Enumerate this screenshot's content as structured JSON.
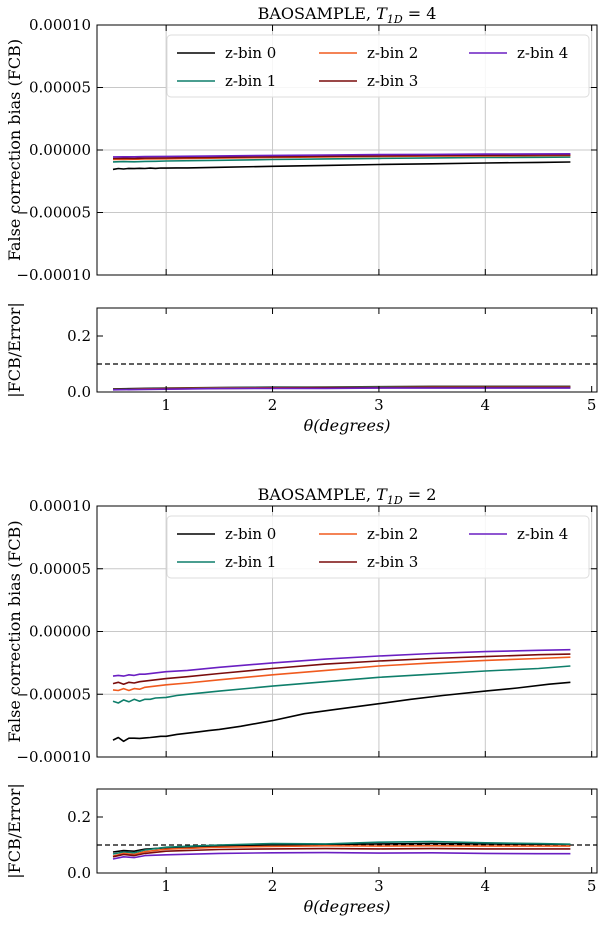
{
  "colors": {
    "z-bin 0": "#000000",
    "z-bin 1": "#0f7f6b",
    "z-bin 2": "#f05a1e",
    "z-bin 3": "#7a0c0c",
    "z-bin 4": "#6a1fc2"
  },
  "chart_data": [
    {
      "type": "line",
      "title": "BAOSAMPLE, T_1D = 4",
      "title_prefix": "BAOSAMPLE, ",
      "title_var": "T",
      "title_sub": "1D",
      "title_suffix": " = 4",
      "ylabel": "False correction bias (FCB)",
      "xlim": [
        0.35,
        5.05
      ],
      "ylim": [
        -0.0001,
        0.0001
      ],
      "yticks": [
        -0.0001,
        -5e-05,
        0.0,
        5e-05,
        0.0001
      ],
      "ytick_labels": [
        "−0.00010",
        "−0.00005",
        "0.00000",
        "0.00005",
        "0.00010"
      ],
      "xticks": [
        1,
        2,
        3,
        4,
        5
      ],
      "grid": true,
      "legend_placement": "top-right",
      "series": [
        {
          "name": "z-bin 0",
          "x": [
            0.5,
            0.55,
            0.6,
            0.65,
            0.7,
            0.75,
            0.8,
            0.85,
            0.9,
            0.95,
            1.0,
            1.1,
            1.2,
            1.5,
            2.0,
            2.5,
            3.0,
            3.5,
            4.0,
            4.5,
            4.8
          ],
          "y": [
            -1.55e-05,
            -1.48e-05,
            -1.52e-05,
            -1.47e-05,
            -1.49e-05,
            -1.46e-05,
            -1.48e-05,
            -1.45e-05,
            -1.47e-05,
            -1.44e-05,
            -1.45e-05,
            -1.43e-05,
            -1.43e-05,
            -1.38e-05,
            -1.3e-05,
            -1.23e-05,
            -1.16e-05,
            -1.1e-05,
            -1.04e-05,
            -9.9e-06,
            -9.6e-06
          ]
        },
        {
          "name": "z-bin 1",
          "x": [
            0.5,
            0.6,
            0.7,
            0.8,
            0.9,
            1.0,
            1.5,
            2.0,
            2.5,
            3.0,
            3.5,
            4.0,
            4.5,
            4.8
          ],
          "y": [
            -9.5e-06,
            -9.3e-06,
            -9.4e-06,
            -9.1e-06,
            -9e-06,
            -8.8e-06,
            -8.2e-06,
            -7.6e-06,
            -7.1e-06,
            -6.7e-06,
            -6.3e-06,
            -6e-06,
            -5.8e-06,
            -5.7e-06
          ]
        },
        {
          "name": "z-bin 2",
          "x": [
            0.5,
            0.6,
            0.7,
            0.8,
            1.0,
            1.5,
            2.0,
            2.5,
            3.0,
            3.5,
            4.0,
            4.5,
            4.8
          ],
          "y": [
            -7.5e-06,
            -7.4e-06,
            -7.4e-06,
            -7.2e-06,
            -7e-06,
            -6.5e-06,
            -6e-06,
            -5.6e-06,
            -5.2e-06,
            -4.9e-06,
            -4.7e-06,
            -4.5e-06,
            -4.4e-06
          ]
        },
        {
          "name": "z-bin 3",
          "x": [
            0.5,
            0.6,
            0.7,
            0.8,
            1.0,
            1.5,
            2.0,
            2.5,
            3.0,
            3.5,
            4.0,
            4.5,
            4.8
          ],
          "y": [
            -6.8e-06,
            -6.6e-06,
            -6.7e-06,
            -6.5e-06,
            -6.3e-06,
            -5.8e-06,
            -5.4e-06,
            -5e-06,
            -4.7e-06,
            -4.4e-06,
            -4.2e-06,
            -4e-06,
            -3.9e-06
          ]
        },
        {
          "name": "z-bin 4",
          "x": [
            0.5,
            0.6,
            0.7,
            0.8,
            1.0,
            1.5,
            2.0,
            2.5,
            3.0,
            3.5,
            4.0,
            4.5,
            4.8
          ],
          "y": [
            -5.5e-06,
            -5.4e-06,
            -5.4e-06,
            -5.3e-06,
            -5.1e-06,
            -4.7e-06,
            -4.3e-06,
            -4e-06,
            -3.7e-06,
            -3.5e-06,
            -3.3e-06,
            -3.1e-06,
            -3e-06
          ]
        }
      ]
    },
    {
      "type": "line",
      "ylabel": "|FCB/Error|",
      "xlabel": "θ(degrees)",
      "xlim": [
        0.35,
        5.05
      ],
      "ylim": [
        0.0,
        0.3
      ],
      "yticks": [
        0.0,
        0.2
      ],
      "ytick_labels": [
        "0.0",
        "0.2"
      ],
      "xticks": [
        1,
        2,
        3,
        4,
        5
      ],
      "xtick_labels": [
        "1",
        "2",
        "3",
        "4",
        "5"
      ],
      "reference_line": 0.1,
      "grid": false,
      "series": [
        {
          "name": "z-bin 0",
          "x": [
            0.5,
            1.0,
            1.5,
            2.0,
            2.5,
            3.0,
            3.5,
            4.0,
            4.5,
            4.8
          ],
          "y": [
            0.011,
            0.014,
            0.016,
            0.017,
            0.018,
            0.019,
            0.02,
            0.02,
            0.02,
            0.02
          ]
        },
        {
          "name": "z-bin 1",
          "x": [
            0.5,
            1.0,
            1.5,
            2.0,
            2.5,
            3.0,
            3.5,
            4.0,
            4.5,
            4.8
          ],
          "y": [
            0.01,
            0.013,
            0.015,
            0.016,
            0.017,
            0.018,
            0.018,
            0.018,
            0.018,
            0.018
          ]
        },
        {
          "name": "z-bin 2",
          "x": [
            0.5,
            1.0,
            1.5,
            2.0,
            2.5,
            3.0,
            3.5,
            4.0,
            4.5,
            4.8
          ],
          "y": [
            0.009,
            0.012,
            0.014,
            0.015,
            0.016,
            0.016,
            0.017,
            0.017,
            0.017,
            0.017
          ]
        },
        {
          "name": "z-bin 3",
          "x": [
            0.5,
            1.0,
            1.5,
            2.0,
            2.5,
            3.0,
            3.5,
            4.0,
            4.5,
            4.8
          ],
          "y": [
            0.009,
            0.011,
            0.013,
            0.014,
            0.015,
            0.015,
            0.016,
            0.016,
            0.016,
            0.016
          ]
        },
        {
          "name": "z-bin 4",
          "x": [
            0.5,
            1.0,
            1.5,
            2.0,
            2.5,
            3.0,
            3.5,
            4.0,
            4.5,
            4.8
          ],
          "y": [
            0.008,
            0.01,
            0.012,
            0.013,
            0.013,
            0.014,
            0.014,
            0.014,
            0.014,
            0.014
          ]
        }
      ]
    },
    {
      "type": "line",
      "title": "BAOSAMPLE, T_1D = 2",
      "title_prefix": "BAOSAMPLE, ",
      "title_var": "T",
      "title_sub": "1D",
      "title_suffix": " = 2",
      "ylabel": "False correction bias (FCB)",
      "xlim": [
        0.35,
        5.05
      ],
      "ylim": [
        -0.0001,
        0.0001
      ],
      "yticks": [
        -0.0001,
        -5e-05,
        0.0,
        5e-05,
        0.0001
      ],
      "ytick_labels": [
        "−0.00010",
        "−0.00005",
        "0.00000",
        "0.00005",
        "0.00010"
      ],
      "xticks": [
        1,
        2,
        3,
        4,
        5
      ],
      "grid": true,
      "legend_placement": "top-right",
      "series": [
        {
          "name": "z-bin 0",
          "x": [
            0.5,
            0.55,
            0.6,
            0.65,
            0.7,
            0.75,
            0.8,
            0.85,
            0.9,
            0.95,
            1.0,
            1.1,
            1.2,
            1.3,
            1.4,
            1.5,
            1.7,
            2.0,
            2.3,
            2.6,
            3.0,
            3.3,
            3.6,
            4.0,
            4.3,
            4.6,
            4.8
          ],
          "y": [
            -8.65e-05,
            -8.45e-05,
            -8.75e-05,
            -8.5e-05,
            -8.5e-05,
            -8.52e-05,
            -8.48e-05,
            -8.45e-05,
            -8.4e-05,
            -8.35e-05,
            -8.35e-05,
            -8.2e-05,
            -8.1e-05,
            -8e-05,
            -7.9e-05,
            -7.8e-05,
            -7.55e-05,
            -7.1e-05,
            -6.55e-05,
            -6.2e-05,
            -5.75e-05,
            -5.4e-05,
            -5.1e-05,
            -4.75e-05,
            -4.5e-05,
            -4.2e-05,
            -4.05e-05
          ]
        },
        {
          "name": "z-bin 1",
          "x": [
            0.5,
            0.55,
            0.6,
            0.65,
            0.7,
            0.75,
            0.8,
            0.85,
            0.9,
            1.0,
            1.1,
            1.2,
            1.5,
            2.0,
            2.5,
            3.0,
            3.5,
            4.0,
            4.5,
            4.8
          ],
          "y": [
            -5.55e-05,
            -5.7e-05,
            -5.45e-05,
            -5.6e-05,
            -5.4e-05,
            -5.55e-05,
            -5.4e-05,
            -5.4e-05,
            -5.3e-05,
            -5.25e-05,
            -5.1e-05,
            -5e-05,
            -4.75e-05,
            -4.35e-05,
            -4e-05,
            -3.65e-05,
            -3.4e-05,
            -3.15e-05,
            -2.95e-05,
            -2.75e-05
          ]
        },
        {
          "name": "z-bin 2",
          "x": [
            0.5,
            0.55,
            0.6,
            0.65,
            0.7,
            0.75,
            0.8,
            0.9,
            1.0,
            1.2,
            1.5,
            2.0,
            2.5,
            3.0,
            3.5,
            4.0,
            4.5,
            4.8
          ],
          "y": [
            -4.65e-05,
            -4.7e-05,
            -4.55e-05,
            -4.7e-05,
            -4.55e-05,
            -4.6e-05,
            -4.45e-05,
            -4.35e-05,
            -4.25e-05,
            -4.1e-05,
            -3.85e-05,
            -3.45e-05,
            -3.1e-05,
            -2.75e-05,
            -2.5e-05,
            -2.3e-05,
            -2.15e-05,
            -2.05e-05
          ]
        },
        {
          "name": "z-bin 3",
          "x": [
            0.5,
            0.55,
            0.6,
            0.65,
            0.7,
            0.75,
            0.8,
            0.9,
            1.0,
            1.2,
            1.5,
            2.0,
            2.5,
            3.0,
            3.5,
            4.0,
            4.5,
            4.8
          ],
          "y": [
            -4.15e-05,
            -4.05e-05,
            -4.2e-05,
            -4.05e-05,
            -4.1e-05,
            -4e-05,
            -3.95e-05,
            -3.85e-05,
            -3.75e-05,
            -3.6e-05,
            -3.35e-05,
            -2.95e-05,
            -2.6e-05,
            -2.35e-05,
            -2.15e-05,
            -2e-05,
            -1.85e-05,
            -1.8e-05
          ]
        },
        {
          "name": "z-bin 4",
          "x": [
            0.5,
            0.55,
            0.6,
            0.65,
            0.7,
            0.75,
            0.8,
            0.9,
            1.0,
            1.2,
            1.5,
            2.0,
            2.5,
            3.0,
            3.5,
            4.0,
            4.5,
            4.8
          ],
          "y": [
            -3.55e-05,
            -3.5e-05,
            -3.55e-05,
            -3.45e-05,
            -3.5e-05,
            -3.4e-05,
            -3.4e-05,
            -3.3e-05,
            -3.2e-05,
            -3.1e-05,
            -2.85e-05,
            -2.5e-05,
            -2.2e-05,
            -1.95e-05,
            -1.75e-05,
            -1.6e-05,
            -1.5e-05,
            -1.45e-05
          ]
        }
      ]
    },
    {
      "type": "line",
      "ylabel": "|FCB/Error|",
      "xlabel": "θ(degrees)",
      "xlim": [
        0.35,
        5.05
      ],
      "ylim": [
        0.0,
        0.3
      ],
      "yticks": [
        0.0,
        0.2
      ],
      "ytick_labels": [
        "0.0",
        "0.2"
      ],
      "xticks": [
        1,
        2,
        3,
        4,
        5
      ],
      "xtick_labels": [
        "1",
        "2",
        "3",
        "4",
        "5"
      ],
      "reference_line": 0.1,
      "grid": false,
      "series": [
        {
          "name": "z-bin 0",
          "x": [
            0.5,
            0.6,
            0.7,
            0.8,
            1.0,
            1.5,
            2.0,
            2.5,
            3.0,
            3.5,
            4.0,
            4.5,
            4.8
          ],
          "y": [
            0.075,
            0.08,
            0.078,
            0.085,
            0.09,
            0.097,
            0.1,
            0.102,
            0.104,
            0.105,
            0.104,
            0.103,
            0.102
          ]
        },
        {
          "name": "z-bin 1",
          "x": [
            0.5,
            0.6,
            0.7,
            0.8,
            1.0,
            1.5,
            2.0,
            2.5,
            3.0,
            3.5,
            4.0,
            4.5,
            4.8
          ],
          "y": [
            0.068,
            0.075,
            0.072,
            0.082,
            0.092,
            0.1,
            0.105,
            0.104,
            0.11,
            0.112,
            0.108,
            0.105,
            0.103
          ]
        },
        {
          "name": "z-bin 2",
          "x": [
            0.5,
            0.6,
            0.7,
            0.8,
            1.0,
            1.5,
            2.0,
            2.5,
            3.0,
            3.5,
            4.0,
            4.5,
            4.8
          ],
          "y": [
            0.06,
            0.07,
            0.066,
            0.076,
            0.085,
            0.092,
            0.095,
            0.097,
            0.096,
            0.097,
            0.096,
            0.096,
            0.096
          ]
        },
        {
          "name": "z-bin 3",
          "x": [
            0.5,
            0.6,
            0.7,
            0.8,
            1.0,
            1.5,
            2.0,
            2.5,
            3.0,
            3.5,
            4.0,
            4.5,
            4.8
          ],
          "y": [
            0.058,
            0.066,
            0.062,
            0.07,
            0.078,
            0.084,
            0.086,
            0.087,
            0.086,
            0.087,
            0.086,
            0.086,
            0.086
          ]
        },
        {
          "name": "z-bin 4",
          "x": [
            0.5,
            0.6,
            0.7,
            0.8,
            1.0,
            1.5,
            2.0,
            2.5,
            3.0,
            3.5,
            4.0,
            4.5,
            4.8
          ],
          "y": [
            0.05,
            0.058,
            0.055,
            0.062,
            0.065,
            0.07,
            0.072,
            0.073,
            0.071,
            0.072,
            0.07,
            0.069,
            0.069
          ]
        }
      ]
    }
  ]
}
